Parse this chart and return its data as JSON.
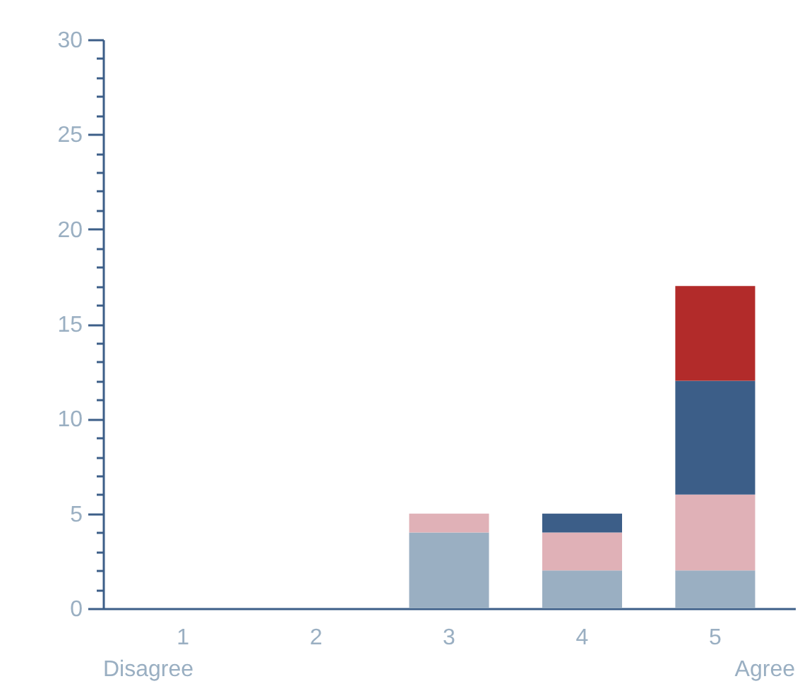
{
  "chart_data": {
    "type": "bar",
    "stacked": true,
    "categories": [
      "1",
      "2",
      "3",
      "4",
      "5"
    ],
    "series": [
      {
        "color": "#9aafc2",
        "values": [
          0,
          0,
          4,
          2,
          2
        ]
      },
      {
        "color": "#e0b1b7",
        "values": [
          0,
          0,
          1,
          2,
          4
        ]
      },
      {
        "color": "#3c5e88",
        "values": [
          0,
          0,
          0,
          1,
          6
        ]
      },
      {
        "color": "#b22b2a",
        "values": [
          0,
          0,
          0,
          0,
          5
        ]
      }
    ],
    "ylim": [
      0,
      30
    ],
    "yticks": [
      0,
      {
        "value": 1,
        "label": null
      },
      {
        "value": 2,
        "label": null
      },
      {
        "value": 3,
        "label": null
      },
      {
        "value": 4,
        "label": null
      },
      5,
      {
        "value": 6,
        "label": null
      },
      {
        "value": 7,
        "label": null
      },
      {
        "value": 8,
        "label": null
      },
      {
        "value": 9,
        "label": null
      },
      10,
      {
        "value": 11,
        "label": null
      },
      {
        "value": 12,
        "label": null
      },
      {
        "value": 13,
        "label": null
      },
      {
        "value": 14,
        "label": null
      },
      15,
      {
        "value": 16,
        "label": null
      },
      {
        "value": 17,
        "label": null
      },
      {
        "value": 18,
        "label": null
      },
      {
        "value": 19,
        "label": null
      },
      20,
      {
        "value": 21,
        "label": null
      },
      {
        "value": 22,
        "label": null
      },
      {
        "value": 23,
        "label": null
      },
      {
        "value": 24,
        "label": null
      },
      25,
      {
        "value": 26,
        "label": null
      },
      {
        "value": 27,
        "label": null
      },
      {
        "value": 28,
        "label": null
      },
      {
        "value": 29,
        "label": null
      },
      30
    ],
    "annotations": [
      "Disagree",
      "Agree"
    ],
    "grid": false,
    "legend": false
  }
}
